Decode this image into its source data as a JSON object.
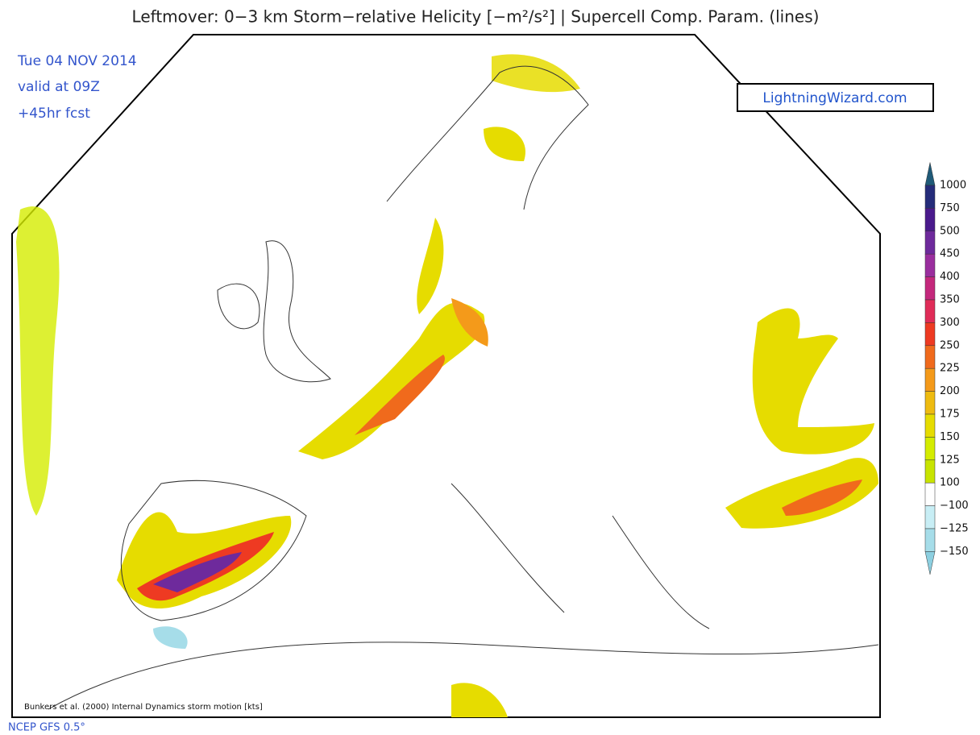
{
  "header": {
    "title": "Leftmover: 0−3 km Storm−relative Helicity [−m²/s²] | Supercell Comp. Param. (lines)"
  },
  "info": {
    "date": "Tue 04 NOV 2014",
    "valid": "valid at 09Z",
    "forecast": "+45hr fcst"
  },
  "brand": "LightningWizard.com",
  "colorbar": {
    "labels": [
      "1000",
      "750",
      "500",
      "450",
      "400",
      "350",
      "300",
      "250",
      "225",
      "200",
      "175",
      "150",
      "125",
      "100",
      "−100",
      "−125",
      "−150"
    ],
    "colors": [
      "#1f5a78",
      "#252c7a",
      "#4a1a8c",
      "#6e2a9c",
      "#9a2e9e",
      "#c4287c",
      "#e02c58",
      "#ee3a22",
      "#f06a1c",
      "#f49a1a",
      "#eebb10",
      "#e6dc00",
      "#d4ec00",
      "#c8e400",
      "#ffffff",
      "#c8eef5",
      "#a6dde9",
      "#8ccfe0"
    ]
  },
  "footer": {
    "note": "Bunkers et al. (2000) Internal Dynamics storm motion [kts]",
    "model": "NCEP GFS 0.5°"
  }
}
